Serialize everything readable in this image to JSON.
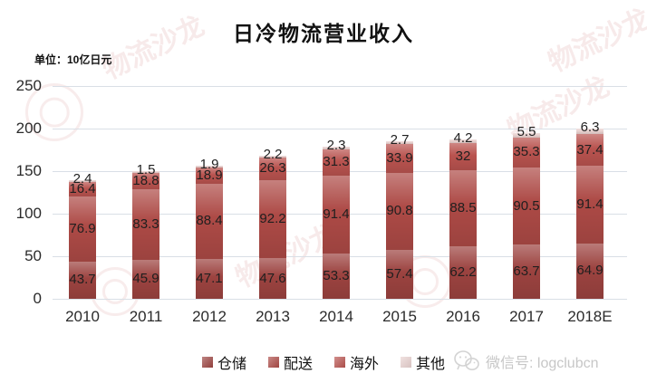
{
  "title": "日冷物流营业收入",
  "unit_label": "单位：10亿日元",
  "chart_data": {
    "type": "bar",
    "stacked": true,
    "title": "日冷物流营业收入",
    "unit": "10亿日元",
    "categories": [
      "2010",
      "2011",
      "2012",
      "2013",
      "2014",
      "2015",
      "2016",
      "2017",
      "2018E"
    ],
    "series": [
      {
        "name": "仓储",
        "color": "#9c4340",
        "values": [
          43.7,
          45.9,
          47.1,
          47.6,
          53.3,
          57.4,
          62.2,
          63.7,
          64.9
        ]
      },
      {
        "name": "配送",
        "color": "#ad4a46",
        "values": [
          76.9,
          83.3,
          88.4,
          92.2,
          91.4,
          90.8,
          88.5,
          90.5,
          91.4
        ]
      },
      {
        "name": "海外",
        "color": "#b9534f",
        "values": [
          16.4,
          18.8,
          18.9,
          26.3,
          31.3,
          33.9,
          32,
          35.3,
          37.4
        ]
      },
      {
        "name": "其他",
        "color": "#e9d2d0",
        "values": [
          2.4,
          1.5,
          1.9,
          2.2,
          2.3,
          2.7,
          4.2,
          5.5,
          6.3
        ]
      }
    ],
    "ylim": [
      0,
      250
    ],
    "yticks": [
      0,
      50,
      100,
      150,
      200,
      250
    ],
    "grid": "horizontal",
    "legend_position": "bottom"
  },
  "watermark": {
    "stamp_text": "物流沙龙",
    "footer_text": "微信号: logclubcn"
  },
  "style_colors": {
    "gridline": "#d9dfe6",
    "label_text": "#1f1f1f",
    "footer_text": "#c7c7c7"
  }
}
